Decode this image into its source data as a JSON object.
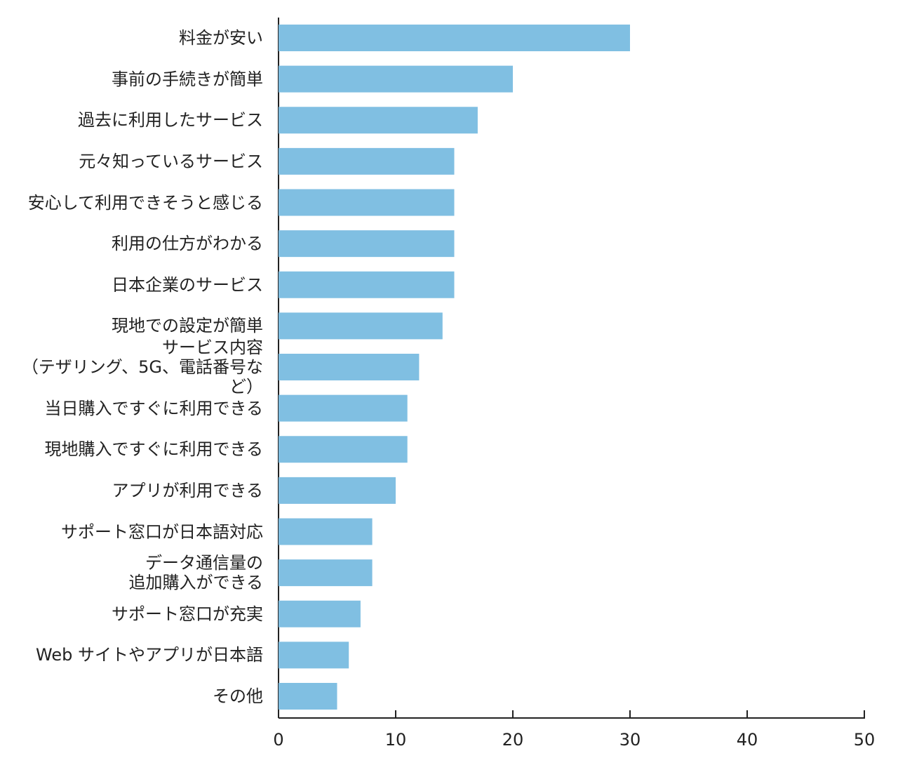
{
  "chart_data": {
    "type": "barh",
    "categories": [
      "料金が安い",
      "事前の手続きが簡単",
      "過去に利用したサービス",
      "元々知っているサービス",
      "安心して利用できそうと感じる",
      "利用の仕方がわかる",
      "日本企業のサービス",
      "現地での設定が簡単",
      "サービス内容\n（テザリング、5G、電話番号など）",
      "当日購入ですぐに利用できる",
      "現地購入ですぐに利用できる",
      "アプリが利用できる",
      "サポート窓口が日本語対応",
      "データ通信量の\n追加購入ができる",
      "サポート窓口が充実",
      "Web サイトやアプリが日本語",
      "その他"
    ],
    "values": [
      30,
      20,
      17,
      15,
      15,
      15,
      15,
      14,
      12,
      11,
      11,
      10,
      8,
      8,
      7,
      6,
      5
    ],
    "color": "#80bfe2",
    "xlim": [
      0,
      50
    ],
    "xticks": [
      0,
      10,
      20,
      30,
      40,
      50
    ],
    "grid": false
  }
}
